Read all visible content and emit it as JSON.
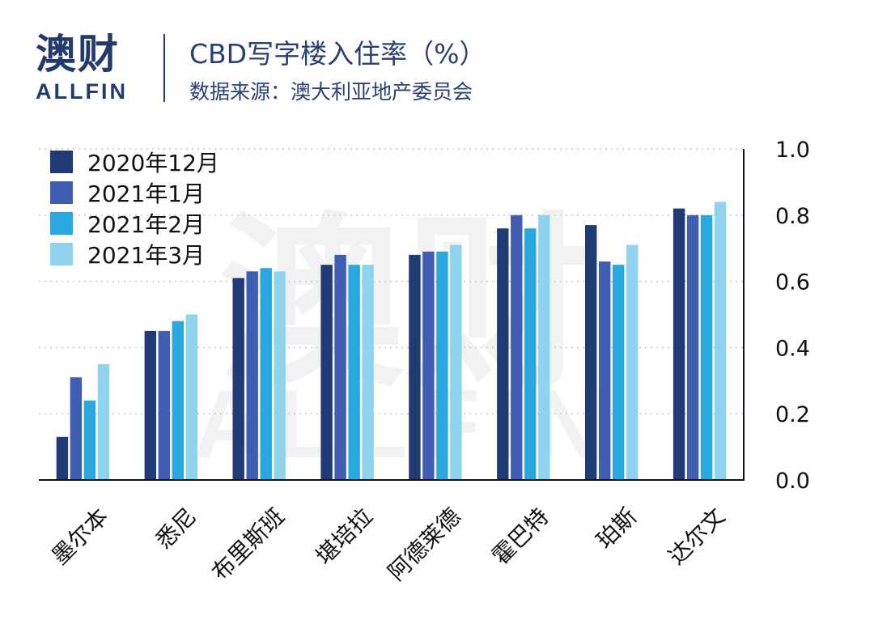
{
  "brand": {
    "name_cn": "澳财",
    "name_en": "ALLFIN"
  },
  "header": {
    "title": "CBD写字楼入住率（%）",
    "subtitle": "数据来源：澳大利亚地产委员会"
  },
  "watermark": {
    "cn": "澳财",
    "en": "ALLFIN"
  },
  "colors": {
    "brand": "#243a6b",
    "series": [
      "#1f3a74",
      "#3f5db3",
      "#29a8e0",
      "#8fd3ee"
    ]
  },
  "chart_data": {
    "type": "bar",
    "categories": [
      "墨尔本",
      "悉尼",
      "布里斯班",
      "堪培拉",
      "阿德莱德",
      "霍巴特",
      "珀斯",
      "达尔文"
    ],
    "series": [
      {
        "name": "2020年12月",
        "values": [
          0.13,
          0.45,
          0.61,
          0.65,
          0.68,
          0.76,
          0.77,
          0.82
        ]
      },
      {
        "name": "2021年1月",
        "values": [
          0.31,
          0.45,
          0.63,
          0.68,
          0.69,
          0.8,
          0.66,
          0.8
        ]
      },
      {
        "name": "2021年2月",
        "values": [
          0.24,
          0.48,
          0.64,
          0.65,
          0.69,
          0.76,
          0.65,
          0.8
        ]
      },
      {
        "name": "2021年3月",
        "values": [
          0.35,
          0.5,
          0.63,
          0.65,
          0.71,
          0.8,
          0.71,
          0.84
        ]
      }
    ],
    "yticks": [
      "0.0",
      "0.2",
      "0.4",
      "0.6",
      "0.8",
      "1.0"
    ],
    "ylim": [
      0,
      1.0
    ],
    "axis_side": "right",
    "grid": true,
    "legend": "top-left"
  }
}
